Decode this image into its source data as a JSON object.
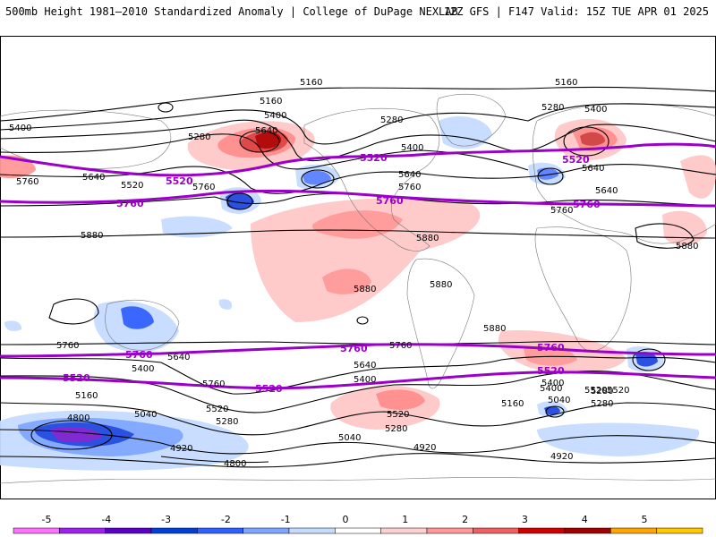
{
  "header": {
    "left": "500mb Height 1981–2010 Standardized Anomaly | College of DuPage NEXLAB",
    "right": "12Z GFS | F147 Valid: 15Z TUE APR 01 2025"
  },
  "colors": {
    "line_black": "#000000",
    "line_purple": "#9b00c8",
    "land_outline": "#777777"
  },
  "purple_contour_labels": [
    {
      "text": "5520",
      "id": "p1"
    },
    {
      "text": "5520",
      "id": "p2"
    },
    {
      "text": "5520",
      "id": "p3"
    },
    {
      "text": "5760",
      "id": "p4"
    },
    {
      "text": "5760",
      "id": "p5"
    },
    {
      "text": "5760",
      "id": "p6"
    },
    {
      "text": "5760",
      "id": "p7"
    },
    {
      "text": "5760",
      "id": "p8"
    },
    {
      "text": "5760",
      "id": "p9"
    },
    {
      "text": "5520",
      "id": "p10"
    },
    {
      "text": "5520",
      "id": "p11"
    },
    {
      "text": "5520",
      "id": "p12"
    },
    {
      "text": "5520",
      "id": "p13"
    }
  ],
  "black_contour_labels": [
    "5160",
    "5160",
    "5160",
    "5400",
    "5400",
    "5280",
    "5280",
    "5640",
    "5400",
    "5400",
    "5280",
    "5640",
    "5640",
    "5520",
    "5760",
    "5640",
    "5760",
    "5760",
    "5880",
    "5880",
    "5880",
    "5880",
    "5880",
    "5880",
    "5760",
    "5640",
    "5400",
    "5760",
    "5640",
    "5760",
    "5640",
    "5760",
    "5400",
    "5520",
    "5400",
    "5280",
    "5160",
    "5520",
    "5040",
    "4920",
    "4800",
    "4800",
    "5280",
    "5040",
    "4920",
    "5160",
    "5040",
    "5280",
    "4920",
    "5520",
    "5520",
    "5400",
    "5280"
  ],
  "colorbar": {
    "ticks": [
      "-5",
      "-4",
      "-3",
      "-2",
      "-1",
      "0",
      "1",
      "2",
      "3",
      "4",
      "5"
    ],
    "colors": [
      "#ff70ff",
      "#a020f0",
      "#5a00c8",
      "#0040d8",
      "#3060ff",
      "#7ea6ff",
      "#c6dcff",
      "#ffffff",
      "#ffd0d0",
      "#ff9898",
      "#f06060",
      "#d00000",
      "#a00000",
      "#ffa500",
      "#ffc800"
    ]
  },
  "chart_data": {
    "type": "map",
    "field": "500mb geopotential height (dam*10 m) contours with standardized anomaly shading",
    "scale_ticks": [
      -5,
      -4,
      -3,
      -2,
      -1,
      0,
      1,
      2,
      3,
      4,
      5
    ]
  }
}
